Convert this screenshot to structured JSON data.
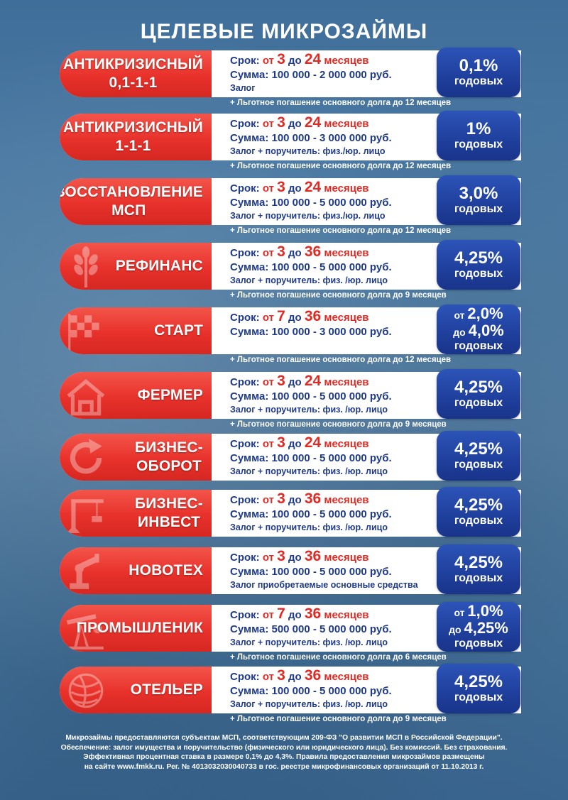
{
  "title": "ЦЕЛЕВЫЕ МИКРОЗАЙМЫ",
  "colors": {
    "red": "#e8312b",
    "blue": "#1f3f9c",
    "text_blue": "#1f3a88",
    "accent_red": "#e02a24"
  },
  "programs": [
    {
      "name": [
        "АНТИКРИЗИСНЫЙ",
        "0,1-1-1"
      ],
      "term": {
        "label": "Срок:",
        "from_word": "от",
        "from": "3",
        "to_word": "до",
        "to": "24",
        "unit": "месяцев"
      },
      "sum": "Сумма: 100 000 - 2 000 000 руб.",
      "collateral": "Залог",
      "rate": {
        "lines": [],
        "value": "0,1%",
        "caption": "годовых"
      },
      "note": "+ Льготное погашение основного долга до 12 месяцев",
      "icon": "none"
    },
    {
      "name": [
        "АНТИКРИЗИСНЫЙ",
        "1-1-1"
      ],
      "term": {
        "label": "Срок:",
        "from_word": "от",
        "from": "3",
        "to_word": "до",
        "to": "24",
        "unit": "месяцев"
      },
      "sum": "Сумма: 100 000 - 3 000 000 руб.",
      "collateral": "Залог + поручитель: физ./юр. лицо",
      "rate": {
        "lines": [],
        "value": "1%",
        "caption": "годовых"
      },
      "note": "+ Льготное погашение основного долга до 12 месяцев",
      "icon": "none"
    },
    {
      "name": [
        "ВОССТАНОВЛЕНИЕ",
        "МСП"
      ],
      "term": {
        "label": "Срок:",
        "from_word": "от",
        "from": "3",
        "to_word": "до",
        "to": "24",
        "unit": "месяцев"
      },
      "sum": "Сумма: 100 000 - 5 000 000 руб.",
      "collateral": "Залог + поручитель: физ./юр. лицо",
      "rate": {
        "lines": [],
        "value": "3,0%",
        "caption": "годовых"
      },
      "note": "+ Льготное погашение основного долга до 12 месяцев",
      "icon": "none"
    },
    {
      "name": [
        "РЕФИНАНС"
      ],
      "term": {
        "label": "Срок:",
        "from_word": "от",
        "from": "3",
        "to_word": "до",
        "to": "36",
        "unit": "месяцев"
      },
      "sum": "Сумма: 100 000 - 5 000 000 руб.",
      "collateral": "Залог + поручитель: физ. /юр.  лицо",
      "rate": {
        "lines": [],
        "value": "4,25%",
        "caption": "годовых"
      },
      "note": "+ Льготное погашение основного долга до 9 месяцев",
      "icon": "wheat-icon"
    },
    {
      "name": [
        "СТАРТ"
      ],
      "term": {
        "label": "Срок:",
        "from_word": "от",
        "from": "7",
        "to_word": "до",
        "to": "36",
        "unit": "месяцев"
      },
      "sum": "Сумма: 100 000 - 3 000 000 руб.",
      "collateral": "",
      "rate": {
        "lines": [
          {
            "prefix": "от",
            "value": "2,0%"
          },
          {
            "prefix": "до",
            "value": "4,0%"
          }
        ],
        "value": "",
        "caption": "годовых"
      },
      "note": "+ Льготное погашение основного долга до 12 месяцев",
      "icon": "finish-flag-icon"
    },
    {
      "name": [
        "ФЕРМЕР"
      ],
      "term": {
        "label": "Срок:",
        "from_word": "от",
        "from": "3",
        "to_word": "до",
        "to": "24",
        "unit": "месяцев"
      },
      "sum": "Сумма: 100 000 - 5 000 000 руб.",
      "collateral": "Залог + поручитель: физ. /юр.  лицо",
      "rate": {
        "lines": [],
        "value": "4,25%",
        "caption": "годовых"
      },
      "note": "+ Льготное погашение основного долга до 9 месяцев",
      "icon": "barn-icon"
    },
    {
      "name": [
        "БИЗНЕС-",
        "ОБОРОТ"
      ],
      "term": {
        "label": "Срок:",
        "from_word": "от",
        "from": "3",
        "to_word": "до",
        "to": "24",
        "unit": "месяцев"
      },
      "sum": "Сумма: 100 000 - 5 000 000 руб.",
      "collateral": "Залог + поручитель: физ. /юр.  лицо",
      "rate": {
        "lines": [],
        "value": "4,25%",
        "caption": "годовых"
      },
      "note": "",
      "icon": "refresh-arrow-icon"
    },
    {
      "name": [
        "БИЗНЕС-",
        "ИНВЕСТ"
      ],
      "term": {
        "label": "Срок:",
        "from_word": "от",
        "from": "3",
        "to_word": "до",
        "to": "36",
        "unit": "месяцев"
      },
      "sum": "Сумма: 100 000 - 5 000 000 руб.",
      "collateral": "Залог + поручитель: физ. /юр.  лицо",
      "rate": {
        "lines": [],
        "value": "4,25%",
        "caption": "годовых"
      },
      "note": "",
      "icon": "crane-icon"
    },
    {
      "name": [
        "НОВОТЕХ"
      ],
      "term": {
        "label": "Срок:",
        "from_word": "от",
        "from": "3",
        "to_word": "до",
        "to": "36",
        "unit": "месяцев"
      },
      "sum": "Сумма: 100 000 - 5 000 000 руб.",
      "collateral": "Залог приобретаемые основные средства",
      "rate": {
        "lines": [],
        "value": "4,25%",
        "caption": "годовых"
      },
      "note": "",
      "icon": "robot-arm-icon"
    },
    {
      "name": [
        "ПРОМЫШЛЕНИК"
      ],
      "term": {
        "label": "Срок:",
        "from_word": "от",
        "from": "7",
        "to_word": "до",
        "to": "36",
        "unit": "месяцев"
      },
      "sum": "Сумма: 500 000 - 5 000 000 руб.",
      "collateral": "Залог + поручитель: физ. /юр. лицо",
      "rate": {
        "lines": [
          {
            "prefix": "от",
            "value": "1,0%"
          },
          {
            "prefix": "до",
            "value": "4,25%"
          }
        ],
        "value": "",
        "caption": "годовых"
      },
      "note": "+ Льготное погашение основного долга до 6 месяцев",
      "icon": "oil-pump-icon"
    },
    {
      "name": [
        "ОТЕЛЬЕР"
      ],
      "term": {
        "label": "Срок:",
        "from_word": "от",
        "from": "3",
        "to_word": "до",
        "to": "36",
        "unit": "месяцев"
      },
      "sum": "Сумма: 100 000 - 5 000 000 руб.",
      "collateral": "Залог + поручитель: физ. /юр.  лицо",
      "rate": {
        "lines": [],
        "value": "4,25%",
        "caption": "годовых"
      },
      "note": "+ Льготное погашение основного долга до 9 месяцев",
      "icon": "yarn-ball-icon"
    }
  ],
  "footer": [
    "Микрозаймы предоставляются субъектам  МСП, соответствующим 209-ФЗ \"О развитии МСП в Российской Федерации\".",
    "Обеспечение: залог имущества и поручительство (физического или юридического лица). Без комиссий. Без страхования.",
    "Эффективная процентная ставка в размере 0,1% до 4,3%. Правила предоставления микрозаймов размещены",
    "на сайте www.fmkk.ru. Рег. № 4013032030040733 в гос. реестре микрофинансовых организаций от 11.10.2013 г."
  ]
}
